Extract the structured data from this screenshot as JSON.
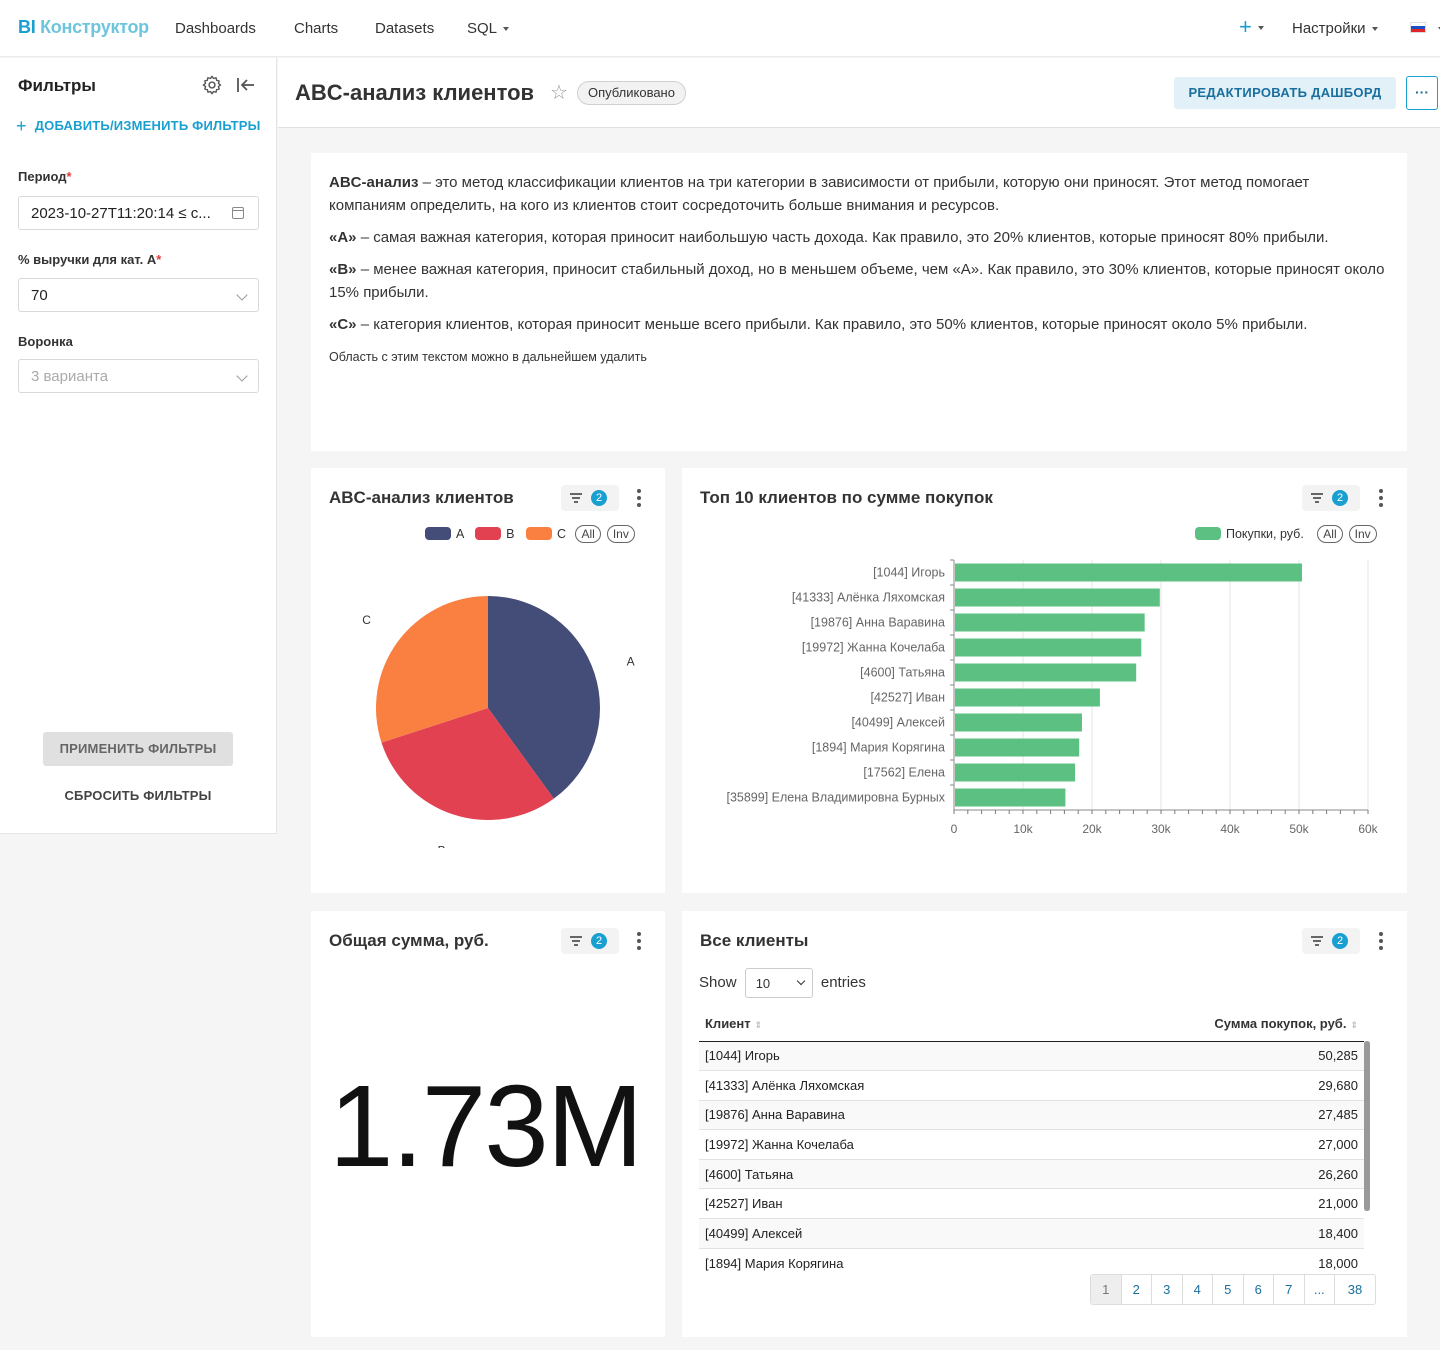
{
  "nav": {
    "logo_bi": "BI",
    "logo_rest": "Конструктор",
    "items": [
      "Dashboards",
      "Charts",
      "Datasets",
      "SQL"
    ],
    "plus": "+",
    "settings": "Настройки"
  },
  "sidebar": {
    "title": "Фильтры",
    "add_filters": "ДОБАВИТЬ/ИЗМЕНИТЬ ФИЛЬТРЫ",
    "filters": [
      {
        "label": "Период",
        "required": true,
        "value": "2023-10-27T11:20:14 ≤ c..."
      },
      {
        "label": "% выручки для кат. А",
        "required": true,
        "value": "70"
      },
      {
        "label": "Воронка",
        "required": false,
        "placeholder": "3 варианта"
      }
    ],
    "apply": "ПРИМЕНИТЬ ФИЛЬТРЫ",
    "reset": "СБРОСИТЬ ФИЛЬТРЫ"
  },
  "header": {
    "title": "ABC-анализ клиентов",
    "status": "Опубликовано",
    "edit": "РЕДАКТИРОВАТЬ ДАШБОРД",
    "more": "···"
  },
  "text_block": {
    "p1_bold": "ABC-анализ",
    "p1": " – это метод классификации клиентов на три категории в зависимости от прибыли, которую они приносят. Этот метод помогает компаниям определить, на кого из клиентов стоит сосредоточить больше внимания и ресурсов.",
    "p2_bold": "«A»",
    "p2": " – самая важная категория, которая приносит наибольшую часть дохода. Как правило, это 20% клиентов, которые приносят 80% прибыли.",
    "p3_bold": "«B»",
    "p3": " – менее важная категория, приносит стабильный доход, но в меньшем объеме, чем «A». Как правило, это 30% клиентов, которые приносят около 15% прибыли.",
    "p4_bold": "«C»",
    "p4": " – категория клиентов, которая приносит меньше всего прибыли. Как правило, это 50% клиентов, которые приносят около 5% прибыли.",
    "note": "Область с этим текстом можно в дальнейшем удалить"
  },
  "filter_count": "2",
  "legend_all": "All",
  "legend_inv": "Inv",
  "pie_card": {
    "title": "ABC-анализ клиентов"
  },
  "bar_card": {
    "title": "Топ 10 клиентов по сумме покупок"
  },
  "kpi_card": {
    "title": "Общая сумма, руб.",
    "value": "1.73M"
  },
  "table_card": {
    "title": "Все клиенты",
    "show": "Show",
    "entries_value": "10",
    "entries": "entries",
    "columns": [
      "Клиент",
      "Сумма покупок, руб."
    ],
    "rows": [
      [
        "[1044] Игорь",
        "50,285"
      ],
      [
        "[41333] Алёнка Ляхомская",
        "29,680"
      ],
      [
        "[19876] Анна Варавина",
        "27,485"
      ],
      [
        "[19972] Жанна Кочелаба",
        "27,000"
      ],
      [
        "[4600] Татьяна",
        "26,260"
      ],
      [
        "[42527] Иван",
        "21,000"
      ],
      [
        "[40499] Алексей",
        "18,400"
      ],
      [
        "[1894] Мария Корягина",
        "18,000"
      ]
    ],
    "pages": [
      "1",
      "2",
      "3",
      "4",
      "5",
      "6",
      "7",
      "...",
      "38"
    ]
  },
  "colors": {
    "A": "#444c78",
    "B": "#e24152",
    "C": "#fa8041",
    "bar": "#5bc082",
    "accent": "#1a9fd1"
  },
  "chart_data": [
    {
      "type": "pie",
      "categories": [
        "A",
        "B",
        "C"
      ],
      "values": [
        40,
        30,
        30
      ],
      "legend": "top-right"
    },
    {
      "type": "bar",
      "orientation": "horizontal",
      "categories": [
        "[1044] Игорь",
        "[41333] Алёнка Ляхомская",
        "[19876] Анна Варавина",
        "[19972] Жанна Кочелаба",
        "[4600] Татьяна",
        "[42527] Иван",
        "[40499] Алексей",
        "[1894] Мария Корягина",
        "[17562] Елена",
        "[35899] Елена Владимировна Бурных"
      ],
      "series": [
        {
          "name": "Покупки, руб.",
          "values": [
            50285,
            29680,
            27485,
            27000,
            26260,
            21000,
            18400,
            18000,
            17400,
            16000
          ]
        }
      ],
      "xlim": [
        0,
        60000
      ],
      "xticks": [
        "0",
        "10k",
        "20k",
        "30k",
        "40k",
        "50k",
        "60k"
      ],
      "grid": true,
      "legend": "top-right"
    }
  ]
}
